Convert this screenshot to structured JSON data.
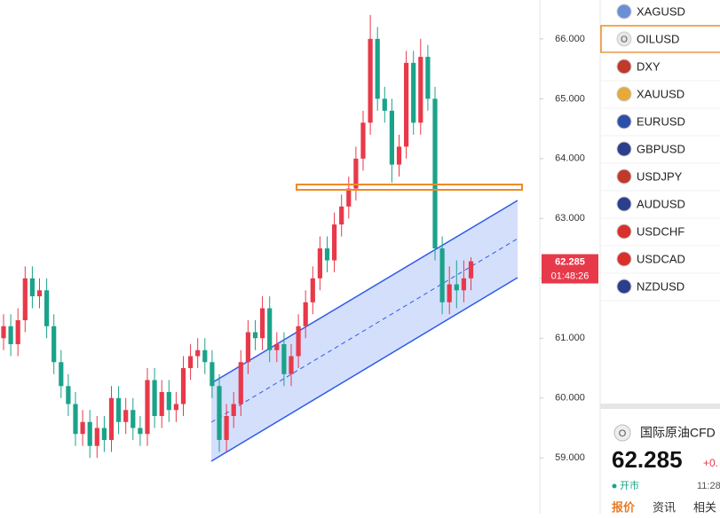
{
  "chart_data": {
    "type": "candlestick",
    "open": [
      61.0,
      61.2,
      60.9,
      61.3,
      62.0,
      61.7,
      61.8,
      61.2,
      60.6,
      60.2,
      59.9,
      59.4,
      59.6,
      59.2,
      59.5,
      59.3,
      60.0,
      59.6,
      59.8,
      59.5,
      59.4,
      60.3,
      59.7,
      60.1,
      59.8,
      59.9,
      60.5,
      60.7,
      60.8,
      60.6,
      60.2,
      59.3,
      59.7,
      59.9,
      60.6,
      61.1,
      61.0,
      61.5,
      60.8,
      60.9,
      60.4,
      60.7,
      61.2,
      61.6,
      62.0,
      62.5,
      62.3,
      62.9,
      63.2,
      63.5,
      64.0,
      64.6,
      66.0,
      65.0,
      64.8,
      63.9,
      64.2,
      65.6,
      64.6,
      65.7,
      65.0,
      62.5,
      61.6,
      61.9,
      61.8,
      62.0
    ],
    "high": [
      61.4,
      61.4,
      61.5,
      62.2,
      62.2,
      62.0,
      62.0,
      61.4,
      60.8,
      60.4,
      60.1,
      59.8,
      59.8,
      59.7,
      59.7,
      60.2,
      60.2,
      60.0,
      60.0,
      59.7,
      60.5,
      60.5,
      60.3,
      60.3,
      60.1,
      60.7,
      60.9,
      61.0,
      61.0,
      60.8,
      60.4,
      59.9,
      60.1,
      60.8,
      61.3,
      61.3,
      61.7,
      61.7,
      61.1,
      61.1,
      60.9,
      61.4,
      61.8,
      62.2,
      62.7,
      62.7,
      63.1,
      63.4,
      63.7,
      64.2,
      64.8,
      66.4,
      66.2,
      65.2,
      65.0,
      64.4,
      65.8,
      65.8,
      66.0,
      65.9,
      65.2,
      62.7,
      62.2,
      62.3,
      62.3,
      62.35
    ],
    "low": [
      60.8,
      60.7,
      60.7,
      61.1,
      61.5,
      61.5,
      61.0,
      60.4,
      60.0,
      59.7,
      59.2,
      59.2,
      59.0,
      59.0,
      59.1,
      59.1,
      59.4,
      59.4,
      59.3,
      59.2,
      59.2,
      59.5,
      59.5,
      59.6,
      59.6,
      59.7,
      60.3,
      60.5,
      60.4,
      60.0,
      59.1,
      59.1,
      59.5,
      59.7,
      60.4,
      60.8,
      60.8,
      60.6,
      60.6,
      60.2,
      60.2,
      60.5,
      61.0,
      61.4,
      61.8,
      62.1,
      62.1,
      62.7,
      63.0,
      63.3,
      63.8,
      64.4,
      64.8,
      64.6,
      63.6,
      63.7,
      64.0,
      64.4,
      64.4,
      64.8,
      62.3,
      61.4,
      61.4,
      61.5,
      61.6,
      61.8
    ],
    "close": [
      61.2,
      60.9,
      61.3,
      62.0,
      61.7,
      61.8,
      61.2,
      60.6,
      60.2,
      59.9,
      59.4,
      59.6,
      59.2,
      59.5,
      59.3,
      60.0,
      59.6,
      59.8,
      59.5,
      59.4,
      60.3,
      59.7,
      60.1,
      59.8,
      59.9,
      60.5,
      60.7,
      60.8,
      60.6,
      60.2,
      59.3,
      59.7,
      59.9,
      60.6,
      61.1,
      61.0,
      61.5,
      60.8,
      60.9,
      60.4,
      60.7,
      61.2,
      61.6,
      62.0,
      62.5,
      62.3,
      62.9,
      63.2,
      63.5,
      64.0,
      64.6,
      66.0,
      65.0,
      64.8,
      63.9,
      64.2,
      65.6,
      64.6,
      65.7,
      65.0,
      62.5,
      61.6,
      61.9,
      61.8,
      62.0,
      62.285
    ],
    "up_color": "#e8394a",
    "down_color": "#1aa38a",
    "ylim": [
      58.07,
      66.65
    ],
    "yticks": [
      {
        "value": 59,
        "label": "59.000"
      },
      {
        "value": 60,
        "label": "60.000"
      },
      {
        "value": 61,
        "label": "61.000"
      },
      {
        "value": 62,
        "label": "62.000"
      },
      {
        "value": 63,
        "label": "63.000"
      },
      {
        "value": 64,
        "label": "64.000"
      },
      {
        "value": 65,
        "label": "65.000"
      },
      {
        "value": 66,
        "label": "66.000"
      }
    ],
    "countdown": "01:48:26"
  },
  "watchlist": {
    "selected": 1,
    "items": [
      {
        "icon": "",
        "symbol": "XAGUSD",
        "color": "#6b8fd6"
      },
      {
        "icon": "O",
        "symbol": "OILUSD",
        "color": "#e6e6e6"
      },
      {
        "icon": "",
        "symbol": "DXY",
        "color": "#c0392b"
      },
      {
        "icon": "",
        "symbol": "XAUUSD",
        "color": "#e6a93a"
      },
      {
        "icon": "",
        "symbol": "EURUSD",
        "color": "#2e4fa8"
      },
      {
        "icon": "",
        "symbol": "GBPUSD",
        "color": "#2b3f8c"
      },
      {
        "icon": "",
        "symbol": "USDJPY",
        "color": "#c0392b"
      },
      {
        "icon": "",
        "symbol": "AUDUSD",
        "color": "#2b3f8c"
      },
      {
        "icon": "",
        "symbol": "USDCHF",
        "color": "#d9302c"
      },
      {
        "icon": "",
        "symbol": "USDCAD",
        "color": "#d9302c"
      },
      {
        "icon": "",
        "symbol": "NZDUSD",
        "color": "#2b3f8c"
      }
    ]
  },
  "detail": {
    "icon": "O",
    "name": "国际原油CFD",
    "price": "62.285",
    "change": "+0.",
    "status": "开市",
    "time": "11:28",
    "tabs": [
      "报价",
      "资讯",
      "相关"
    ]
  }
}
